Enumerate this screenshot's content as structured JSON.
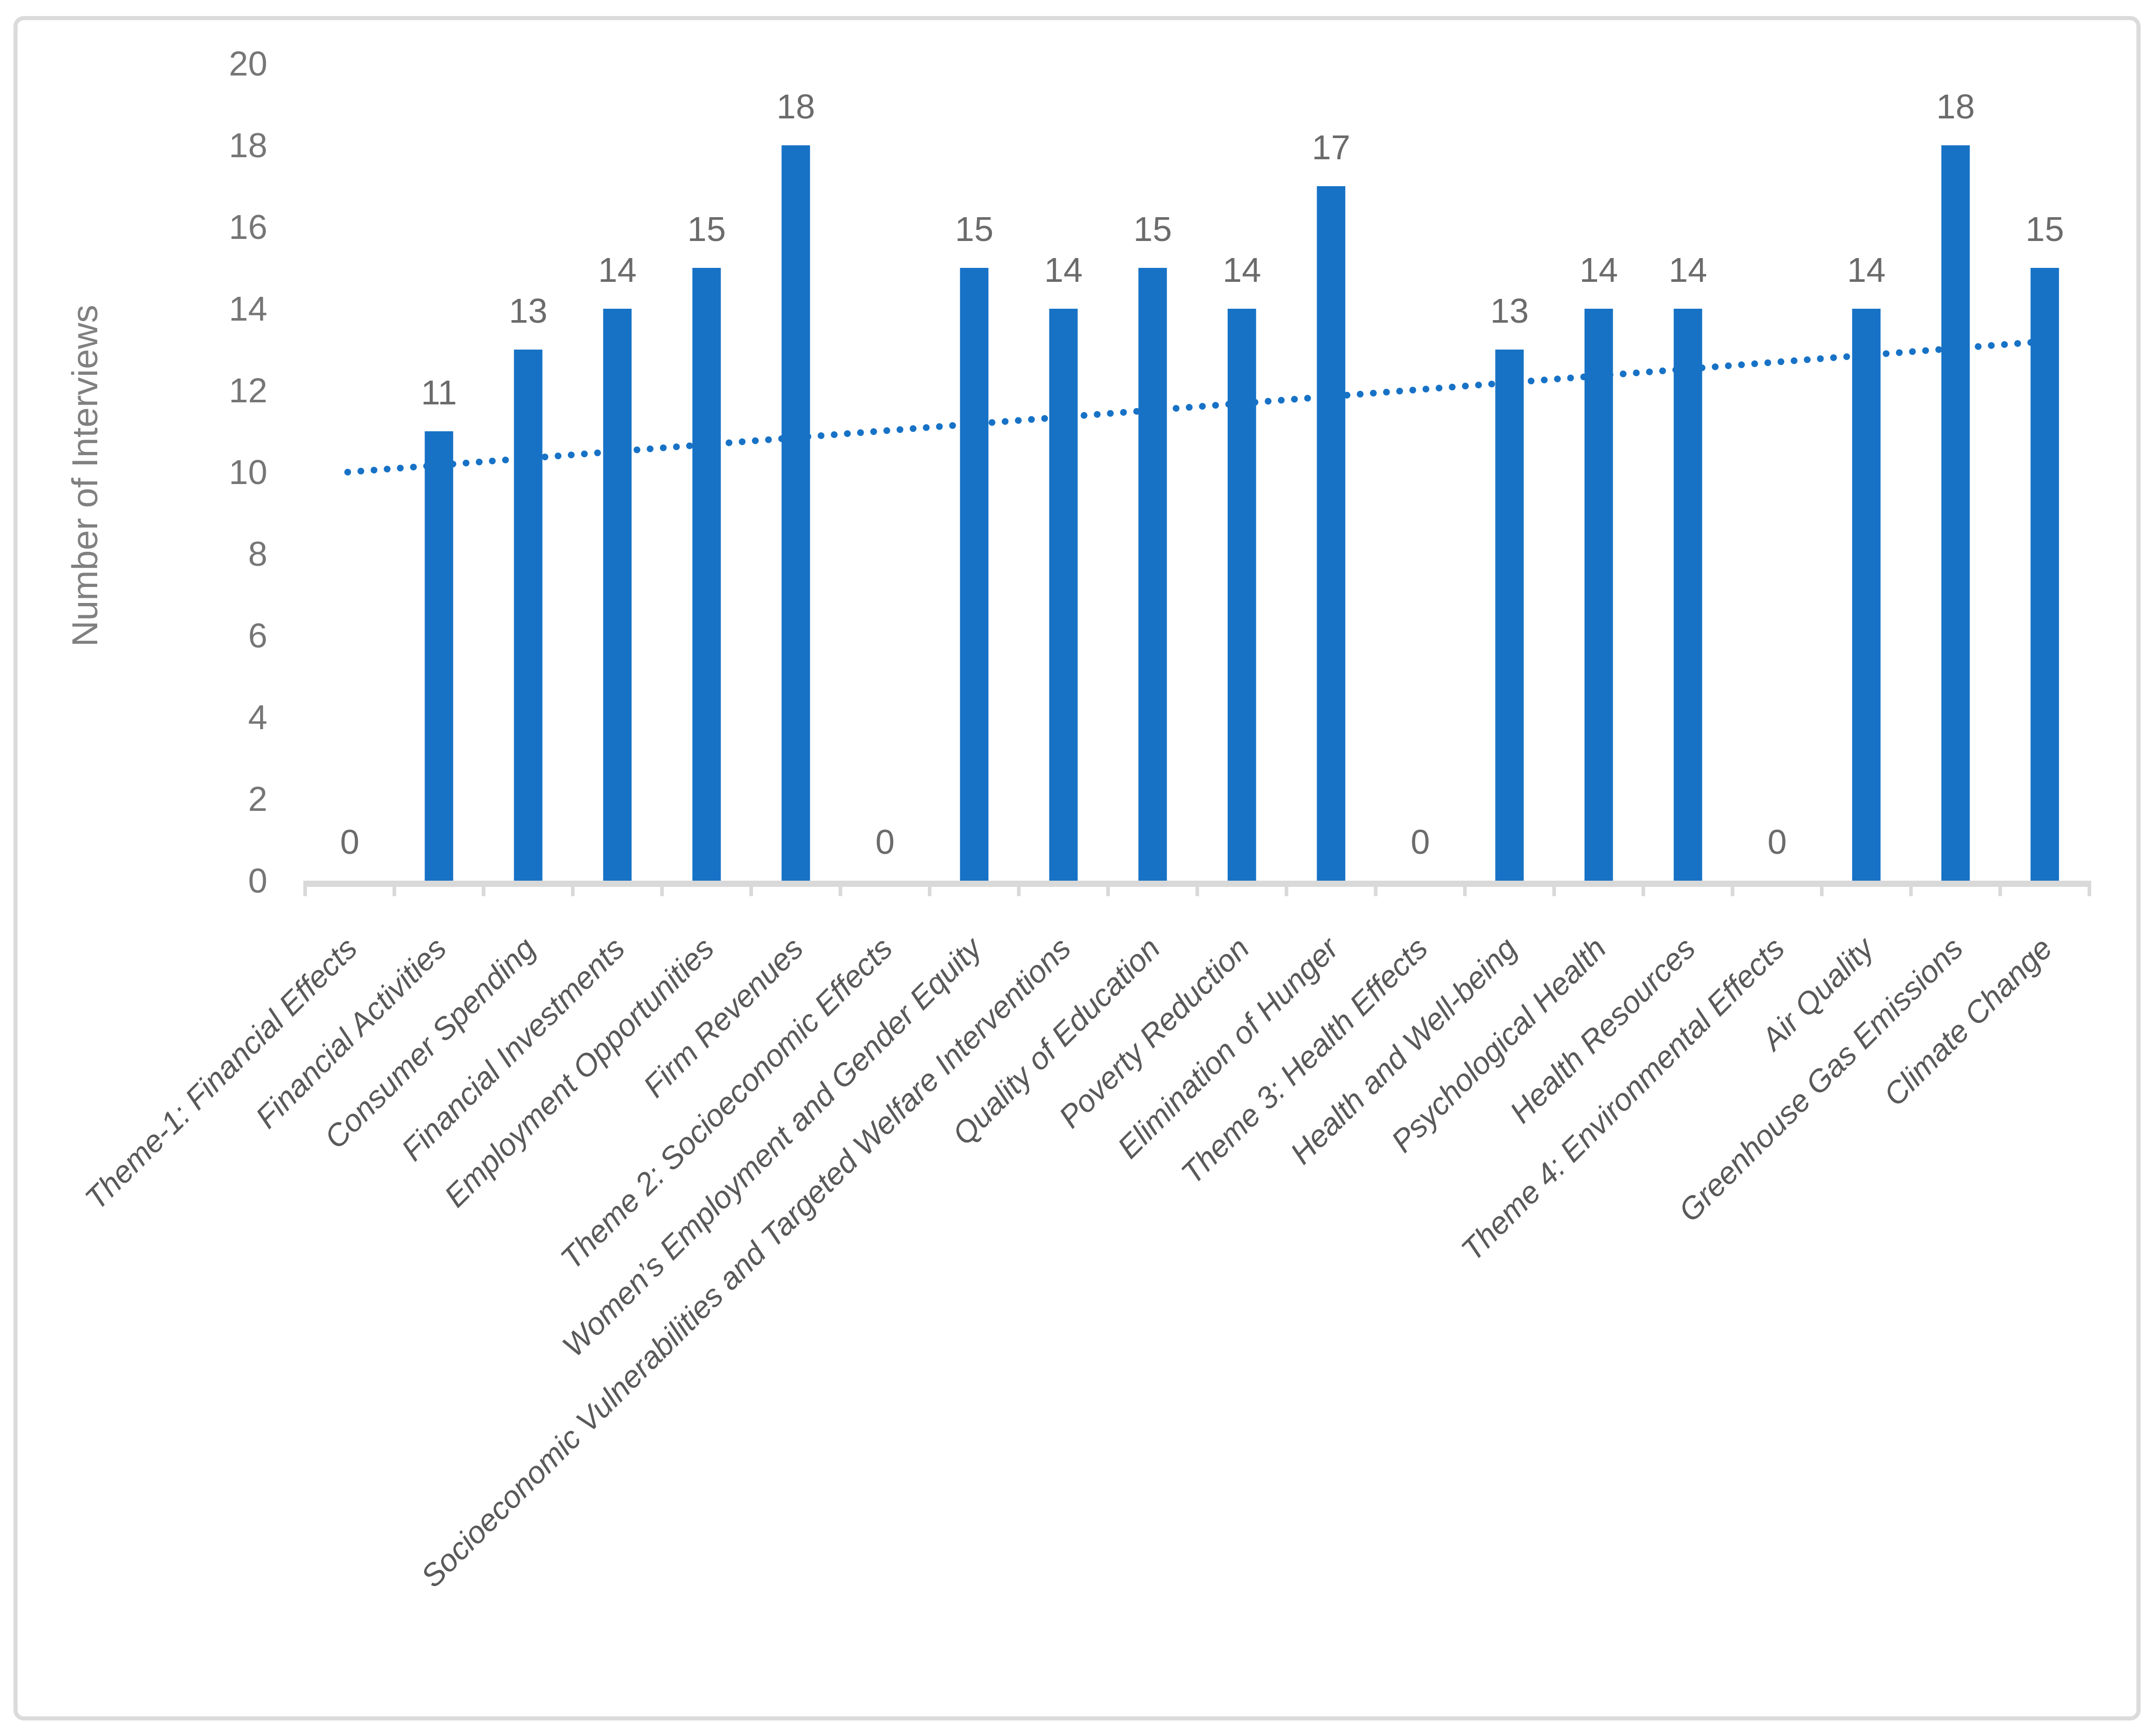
{
  "chart_data": {
    "type": "bar",
    "title": "",
    "xlabel": "",
    "ylabel": "Number of Interviews",
    "ylim": [
      0,
      20
    ],
    "ytick_step": 2,
    "yticks": [
      0,
      2,
      4,
      6,
      8,
      10,
      12,
      14,
      16,
      18,
      20
    ],
    "grid": false,
    "legend_position": "none",
    "bar_labels_shown": true,
    "categories": [
      "Theme-1: Financial Effects",
      "Financial Activities",
      "Consumer Spending",
      "Financial Investments",
      "Employment Opportunities",
      "Firm Revenues",
      "Theme 2: Socioeconomic Effects",
      "Women’s Employment and Gender Equity",
      "Socioeconomic Vulnerabilities and Targeted Welfare Interventions",
      "Quality of Education",
      "Poverty Reduction",
      "Elimination of Hunger",
      "Theme 3: Health Effects",
      "Health and Well-being",
      "Psychological Health",
      "Health Resources",
      "Theme 4: Environmental Effects",
      "Air Quality",
      "Greenhouse Gas Emissions",
      "Climate Change"
    ],
    "values": [
      0,
      11,
      13,
      14,
      15,
      18,
      0,
      15,
      14,
      15,
      14,
      17,
      0,
      13,
      14,
      14,
      0,
      14,
      18,
      15
    ],
    "trendline": {
      "type": "linear",
      "style": "dotted",
      "start_value": 10.0,
      "end_value": 13.2
    },
    "colors": {
      "bar": "#1772C6",
      "trendline": "#1772C6",
      "axis_line": "#D9D9D9",
      "tick_text": "#767676",
      "category_text": "#595959",
      "axis_title_text": "#808080",
      "border": "#DBDBDB"
    }
  }
}
